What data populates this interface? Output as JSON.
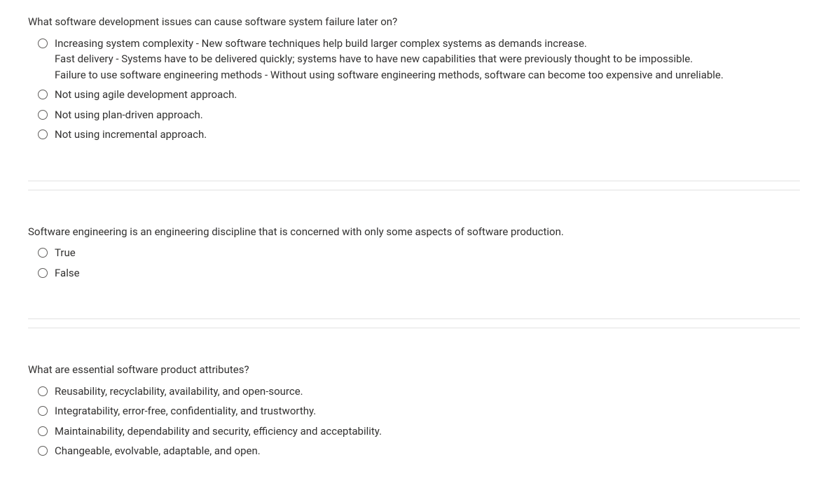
{
  "questions": [
    {
      "prompt": "What software development issues can cause software system failure later on?",
      "options": [
        {
          "lines": [
            "Increasing system complexity - New software techniques help build larger complex systems as demands increase.",
            "Fast delivery - Systems have to be delivered quickly; systems have to have new capabilities that were previously thought to be impossible.",
            "Failure to use software engineering methods - Without using software engineering methods, software can become too expensive and unreliable."
          ]
        },
        {
          "lines": [
            "Not using agile development approach."
          ]
        },
        {
          "lines": [
            "Not using plan-driven approach."
          ]
        },
        {
          "lines": [
            "Not using incremental approach."
          ]
        }
      ]
    },
    {
      "prompt": "Software engineering is an engineering discipline that is concerned with only some aspects of software production.",
      "options": [
        {
          "lines": [
            "True"
          ]
        },
        {
          "lines": [
            "False"
          ]
        }
      ]
    },
    {
      "prompt": "What are essential software product attributes?",
      "options": [
        {
          "lines": [
            "Reusability, recyclability, availability, and open-source."
          ]
        },
        {
          "lines": [
            "Integratability, error-free, confidentiality, and trustworthy."
          ]
        },
        {
          "lines": [
            "Maintainability, dependability and security, efficiency and acceptability."
          ]
        },
        {
          "lines": [
            "Changeable, evolvable, adaptable, and open."
          ]
        }
      ]
    }
  ]
}
